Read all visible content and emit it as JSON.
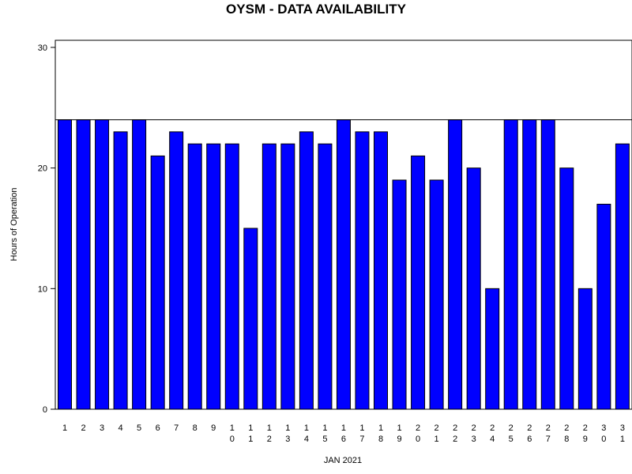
{
  "chart_data": {
    "type": "bar",
    "title": "OYSM - DATA AVAILABILITY",
    "xlabel": "JAN 2021",
    "ylabel": "Hours of Operation",
    "categories": [
      "1",
      "2",
      "3",
      "4",
      "5",
      "6",
      "7",
      "8",
      "9",
      "10",
      "11",
      "12",
      "13",
      "14",
      "15",
      "16",
      "17",
      "18",
      "19",
      "20",
      "21",
      "22",
      "23",
      "24",
      "25",
      "26",
      "27",
      "28",
      "29",
      "30",
      "31"
    ],
    "values": [
      24,
      24,
      24,
      23,
      24,
      21,
      23,
      22,
      22,
      22,
      15,
      22,
      22,
      23,
      22,
      24,
      23,
      23,
      19,
      21,
      19,
      24,
      20,
      10,
      24,
      24,
      24,
      20,
      10,
      17,
      22
    ],
    "ylim": [
      0,
      30
    ],
    "yticks": [
      0,
      10,
      20,
      30
    ],
    "reference_line": 24,
    "bar_color": "#0000ff",
    "grid": false,
    "legend": "none"
  }
}
